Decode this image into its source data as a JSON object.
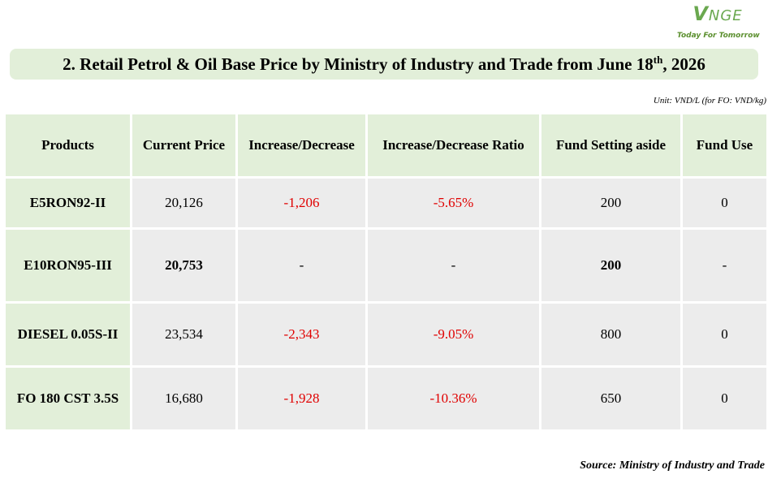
{
  "logo": {
    "mark": "VNGE",
    "tagline": "Today For Tomorrow",
    "color": "#6aa84f"
  },
  "title": {
    "prefix": "2. Retail Petrol & Oil Base Price by Ministry of Industry and Trade from June 18",
    "superscript": "th",
    "suffix": ", 2026"
  },
  "unit_note": "Unit: VND/L (for FO: VND/kg)",
  "table": {
    "headers": [
      "Products",
      "Current Price",
      "Increase/Decrease",
      "Increase/Decrease Ratio",
      "Fund Setting aside",
      "Fund Use"
    ],
    "rows": [
      {
        "product": "E5RON92-II",
        "current_price": "20,126",
        "change": "-1,206",
        "ratio": "-5.65%",
        "fund_setting": "200",
        "fund_use": "0"
      },
      {
        "product": "E10RON95-III",
        "current_price": "20,753",
        "change": "-",
        "ratio": "-",
        "fund_setting": "200",
        "fund_use": "-"
      },
      {
        "product": "DIESEL 0.05S-II",
        "current_price": "23,534",
        "change": "-2,343",
        "ratio": "-9.05%",
        "fund_setting": "800",
        "fund_use": "0"
      },
      {
        "product": "FO 180 CST 3.5S",
        "current_price": "16,680",
        "change": "-1,928",
        "ratio": "-10.36%",
        "fund_setting": "650",
        "fund_use": "0"
      }
    ]
  },
  "colors": {
    "header_green": "#e2efd9",
    "cell_gray": "#ececec",
    "negative_red": "#e00000"
  },
  "source": "Source: Ministry of Industry and Trade"
}
